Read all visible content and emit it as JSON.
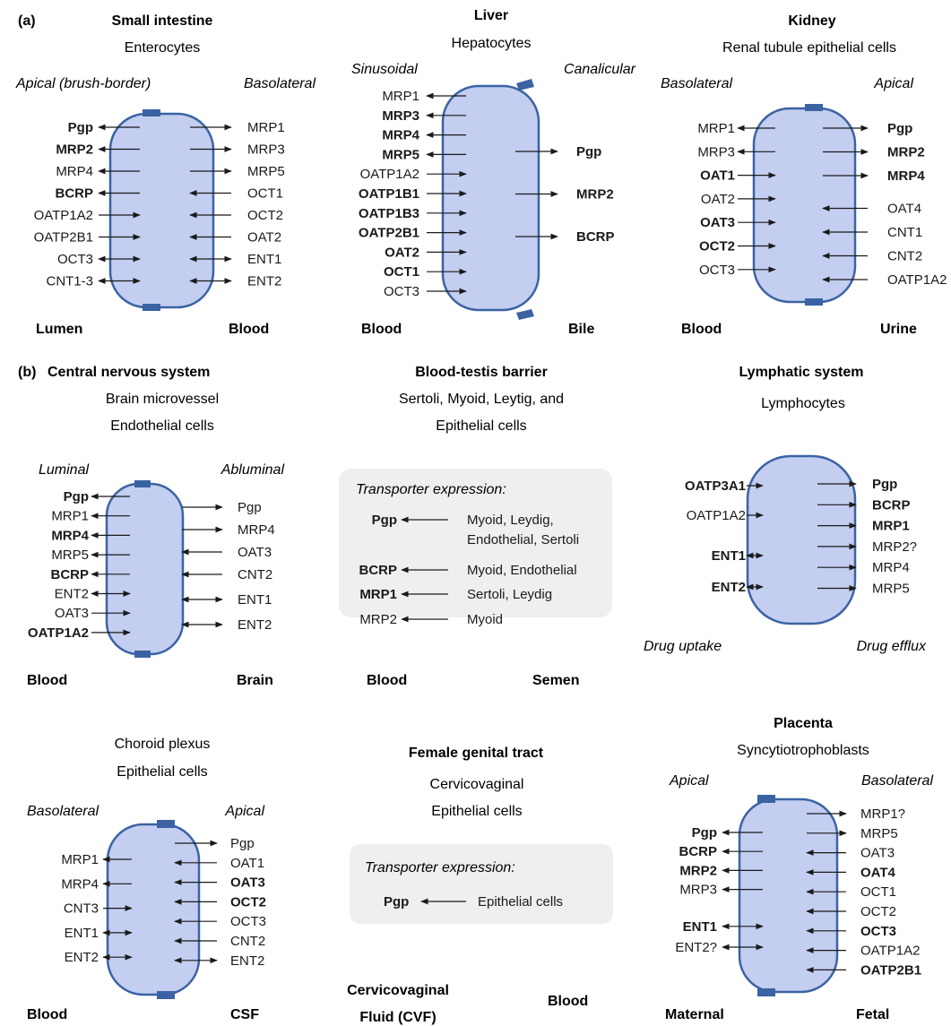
{
  "panel_a_label": "(a)",
  "panel_b_label": "(b)",
  "small_intestine": {
    "title": "Small intestine",
    "cell_type": "Enterocytes",
    "left_side": "Apical (brush-border)",
    "right_side": "Basolateral",
    "left_location": "Lumen",
    "right_location": "Blood",
    "left_transporters": [
      "Pgp",
      "MRP2",
      "MRP4",
      "BCRP",
      "OATP1A2",
      "OATP2B1",
      "OCT3",
      "CNT1-3"
    ],
    "right_transporters": [
      "MRP1",
      "MRP3",
      "MRP5",
      "OCT1",
      "OCT2",
      "OAT2",
      "ENT1",
      "ENT2"
    ]
  },
  "liver": {
    "title": "Liver",
    "cell_type": "Hepatocytes",
    "left_side": "Sinusoidal",
    "right_side": "Canalicular",
    "left_location": "Blood",
    "right_location": "Bile",
    "left_transporters": [
      "MRP1",
      "MRP3",
      "MRP4",
      "MRP5",
      "OATP1A2",
      "OATP1B1",
      "OATP1B3",
      "OATP2B1",
      "OAT2",
      "OCT1",
      "OCT3"
    ],
    "right_transporters": [
      "Pgp",
      "MRP2",
      "BCRP"
    ]
  },
  "kidney": {
    "title": "Kidney",
    "cell_type": "Renal tubule epithelial cells",
    "left_side": "Basolateral",
    "right_side": "Apical",
    "left_location": "Blood",
    "right_location": "Urine",
    "left_transporters": [
      "MRP1",
      "MRP3",
      "OAT1",
      "OAT2",
      "OAT3",
      "OCT2",
      "OCT3"
    ],
    "right_transporters": [
      "Pgp",
      "MRP2",
      "MRP4",
      "OAT4",
      "CNT1",
      "CNT2",
      "OATP1A2"
    ]
  },
  "cns": {
    "title": "Central nervous system",
    "cell_type_1": "Brain microvessel",
    "cell_type_2": "Endothelial cells",
    "left_side": "Luminal",
    "right_side": "Abluminal",
    "left_location": "Blood",
    "right_location": "Brain",
    "left_transporters": [
      "Pgp",
      "MRP1",
      "MRP4",
      "MRP5",
      "BCRP",
      "ENT2",
      "OAT3",
      "OATP1A2"
    ],
    "right_transporters": [
      "Pgp",
      "MRP4",
      "OAT3",
      "CNT2",
      "ENT1",
      "ENT2"
    ]
  },
  "blood_testis": {
    "title": "Blood-testis barrier",
    "cell_type_1": "Sertoli, Myoid, Leytig, and",
    "cell_type_2": "Epithelial cells",
    "box_heading": "Transporter expression:",
    "left_location": "Blood",
    "right_location": "Semen",
    "rows": [
      {
        "transporter": "Pgp",
        "cells_1": "Myoid, Leydig,",
        "cells_2": "Endothelial, Sertoli"
      },
      {
        "transporter": "BCRP",
        "cells_1": "Myoid, Endothelial",
        "cells_2": ""
      },
      {
        "transporter": "MRP1",
        "cells_1": "Sertoli, Leydig",
        "cells_2": ""
      },
      {
        "transporter": "MRP2",
        "cells_1": "Myoid",
        "cells_2": ""
      }
    ]
  },
  "lymphatic": {
    "title": "Lymphatic system",
    "cell_type": "Lymphocytes",
    "left_caption": "Drug uptake",
    "right_caption": "Drug efflux",
    "left_transporters": [
      "OATP3A1",
      "OATP1A2",
      "ENT1",
      "ENT2"
    ],
    "right_transporters": [
      "Pgp",
      "BCRP",
      "MRP1",
      "MRP2?",
      "MRP4",
      "MRP5"
    ]
  },
  "choroid": {
    "cell_type_1": "Choroid plexus",
    "cell_type_2": "Epithelial cells",
    "left_side": "Basolateral",
    "right_side": "Apical",
    "left_location": "Blood",
    "right_location": "CSF",
    "left_transporters": [
      "MRP1",
      "MRP4",
      "CNT3",
      "ENT1",
      "ENT2"
    ],
    "right_transporters": [
      "Pgp",
      "OAT1",
      "OAT3",
      "OCT2",
      "OCT3",
      "CNT2",
      "ENT2"
    ]
  },
  "female": {
    "title": "Female genital tract",
    "cell_type_1": "Cervicovaginal",
    "cell_type_2": "Epithelial cells",
    "box_heading": "Transporter expression:",
    "transporter": "Pgp",
    "cells": "Epithelial cells",
    "left_location_1": "Cervicovaginal",
    "left_location_2": "Fluid (CVF)",
    "right_location": "Blood"
  },
  "placenta": {
    "title": "Placenta",
    "cell_type": "Syncytiotrophoblasts",
    "left_side": "Apical",
    "right_side": "Basolateral",
    "left_location": "Maternal",
    "right_location": "Fetal",
    "left_transporters": [
      "Pgp",
      "BCRP",
      "MRP2",
      "MRP3",
      "ENT1",
      "ENT2?"
    ],
    "right_transporters": [
      "MRP1?",
      "MRP5",
      "OAT3",
      "OAT4",
      "OCT1",
      "OCT2",
      "OCT3",
      "OATP1A2",
      "OATP2B1"
    ]
  },
  "colors": {
    "cell_fill": "#c3cef0",
    "cell_stroke": "#3b63a3",
    "box_fill": "#efefef"
  }
}
